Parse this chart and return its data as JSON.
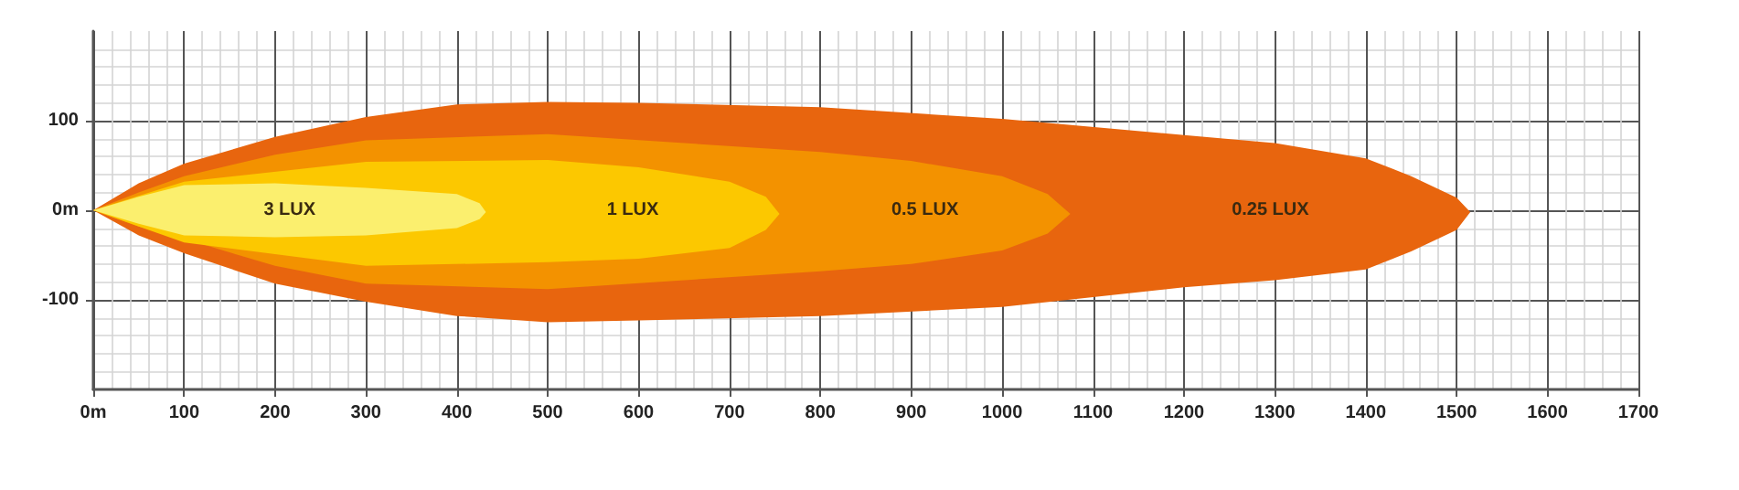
{
  "chart_data": {
    "type": "area",
    "xlim": [
      0,
      1700
    ],
    "ylim": [
      -200,
      200
    ],
    "xticks": [
      {
        "value": 0,
        "label": "0m"
      },
      100,
      200,
      300,
      400,
      500,
      600,
      700,
      800,
      900,
      1000,
      1100,
      1200,
      1300,
      1400,
      1500,
      1600,
      1700
    ],
    "yticks": [
      -100,
      {
        "value": 0,
        "label": "0m"
      },
      100
    ],
    "grid": true,
    "legend": false,
    "series": [
      {
        "name": "0.25 LUX",
        "color": "#e8650e",
        "x": [
          0,
          50,
          100,
          200,
          300,
          400,
          500,
          600,
          800,
          1000,
          1200,
          1300,
          1400,
          1450,
          1500,
          1515,
          1500,
          1450,
          1400,
          1300,
          1200,
          1000,
          800,
          600,
          500,
          400,
          300,
          200,
          100,
          50
        ],
        "values": [
          0,
          30,
          52,
          82,
          104,
          118,
          121,
          120,
          115,
          102,
          84,
          75,
          58,
          38,
          14,
          -2,
          -22,
          -46,
          -66,
          -78,
          -86,
          -108,
          -118,
          -123,
          -125,
          -118,
          -102,
          -82,
          -48,
          -28
        ]
      },
      {
        "name": "0.5 LUX",
        "color": "#f39200",
        "x": [
          0,
          50,
          100,
          200,
          300,
          500,
          800,
          900,
          1000,
          1050,
          1075,
          1050,
          1000,
          900,
          800,
          500,
          300,
          200,
          100,
          50
        ],
        "values": [
          0,
          20,
          38,
          62,
          78,
          85,
          65,
          55,
          38,
          18,
          -4,
          -26,
          -45,
          -60,
          -68,
          -88,
          -82,
          -62,
          -32,
          -18
        ]
      },
      {
        "name": "1 LUX",
        "color": "#fcc800",
        "x": [
          0,
          50,
          100,
          300,
          500,
          600,
          700,
          740,
          755,
          740,
          700,
          600,
          500,
          300,
          100,
          50
        ],
        "values": [
          0,
          16,
          32,
          54,
          56,
          48,
          32,
          15,
          -4,
          -22,
          -42,
          -54,
          -58,
          -62,
          -36,
          -18
        ]
      },
      {
        "name": "3 LUX",
        "color": "#fbef6e",
        "x": [
          0,
          50,
          100,
          200,
          300,
          400,
          425,
          432,
          425,
          400,
          300,
          200,
          100,
          50
        ],
        "values": [
          0,
          15,
          28,
          30,
          25,
          18,
          8,
          -2,
          -10,
          -20,
          -28,
          -30,
          -28,
          -15
        ]
      }
    ]
  }
}
